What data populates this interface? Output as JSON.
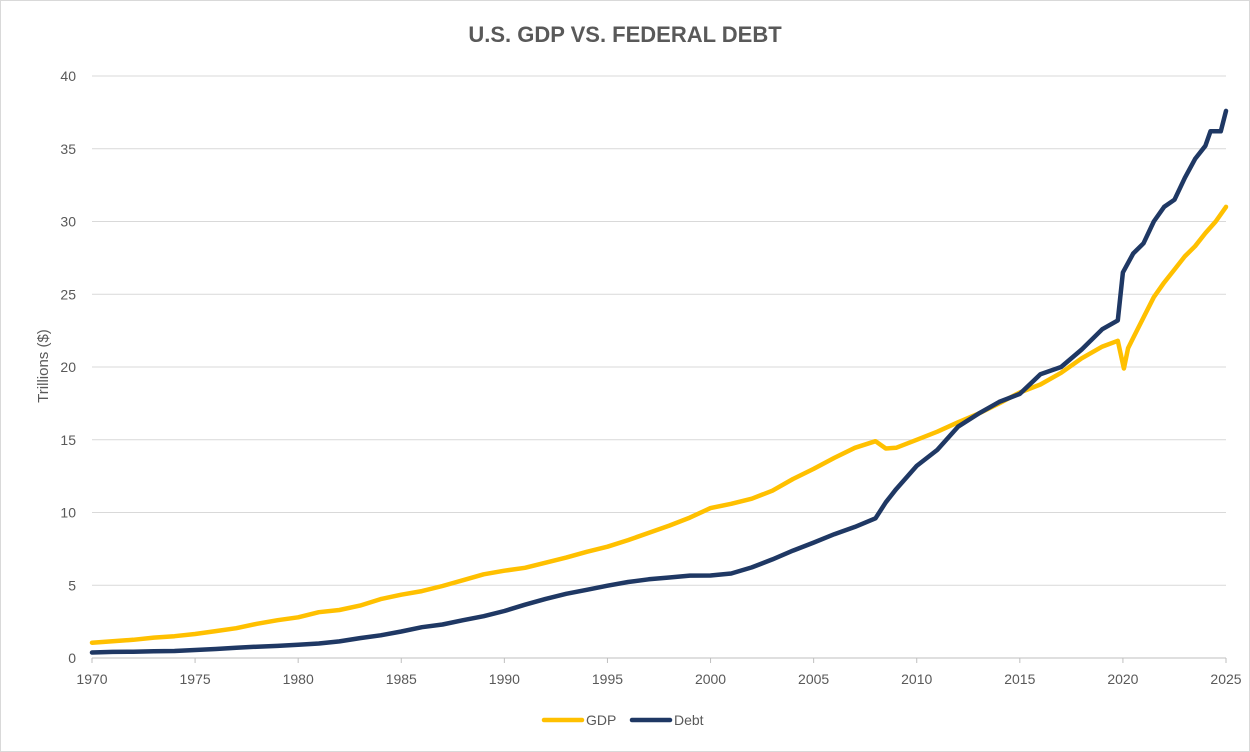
{
  "chart_data": {
    "type": "line",
    "title": "U.S. GDP VS. FEDERAL DEBT",
    "xlabel": "",
    "ylabel": "Trillions ($)",
    "xlim": [
      1970,
      2025
    ],
    "ylim": [
      0,
      40
    ],
    "x_ticks": [
      "1970",
      "1975",
      "1980",
      "1985",
      "1990",
      "1995",
      "2000",
      "2005",
      "2010",
      "2015",
      "2020",
      "2025"
    ],
    "y_ticks": [
      "0",
      "5",
      "10",
      "15",
      "20",
      "25",
      "30",
      "35",
      "40"
    ],
    "grid": "horizontal",
    "legend_position": "bottom",
    "series": [
      {
        "name": "GDP",
        "color": "#FFC000",
        "points": [
          [
            1970,
            1.05
          ],
          [
            1971,
            1.15
          ],
          [
            1972,
            1.25
          ],
          [
            1973,
            1.4
          ],
          [
            1974,
            1.5
          ],
          [
            1975,
            1.65
          ],
          [
            1976,
            1.85
          ],
          [
            1977,
            2.05
          ],
          [
            1978,
            2.35
          ],
          [
            1979,
            2.6
          ],
          [
            1980,
            2.8
          ],
          [
            1981,
            3.15
          ],
          [
            1982,
            3.3
          ],
          [
            1983,
            3.6
          ],
          [
            1984,
            4.05
          ],
          [
            1985,
            4.35
          ],
          [
            1986,
            4.6
          ],
          [
            1987,
            4.95
          ],
          [
            1988,
            5.35
          ],
          [
            1989,
            5.75
          ],
          [
            1990,
            6.0
          ],
          [
            1991,
            6.2
          ],
          [
            1992,
            6.55
          ],
          [
            1993,
            6.9
          ],
          [
            1994,
            7.3
          ],
          [
            1995,
            7.65
          ],
          [
            1996,
            8.1
          ],
          [
            1997,
            8.6
          ],
          [
            1998,
            9.1
          ],
          [
            1999,
            9.65
          ],
          [
            2000,
            10.3
          ],
          [
            2001,
            10.6
          ],
          [
            2002,
            10.95
          ],
          [
            2003,
            11.5
          ],
          [
            2004,
            12.3
          ],
          [
            2005,
            13.0
          ],
          [
            2006,
            13.75
          ],
          [
            2007,
            14.45
          ],
          [
            2008,
            14.9
          ],
          [
            2008.5,
            14.4
          ],
          [
            2009,
            14.45
          ],
          [
            2010,
            15.0
          ],
          [
            2011,
            15.55
          ],
          [
            2012,
            16.2
          ],
          [
            2013,
            16.8
          ],
          [
            2014,
            17.5
          ],
          [
            2015,
            18.25
          ],
          [
            2016,
            18.8
          ],
          [
            2017,
            19.6
          ],
          [
            2018,
            20.6
          ],
          [
            2019,
            21.4
          ],
          [
            2019.75,
            21.8
          ],
          [
            2020.05,
            19.9
          ],
          [
            2020.25,
            21.3
          ],
          [
            2020.5,
            22.0
          ],
          [
            2021,
            23.4
          ],
          [
            2021.5,
            24.8
          ],
          [
            2022,
            25.8
          ],
          [
            2022.5,
            26.7
          ],
          [
            2023,
            27.6
          ],
          [
            2023.5,
            28.3
          ],
          [
            2024,
            29.2
          ],
          [
            2024.5,
            30.0
          ],
          [
            2025,
            31.0
          ]
        ]
      },
      {
        "name": "Debt",
        "color": "#1F3864",
        "points": [
          [
            1970,
            0.38
          ],
          [
            1971,
            0.42
          ],
          [
            1972,
            0.43
          ],
          [
            1973,
            0.46
          ],
          [
            1974,
            0.48
          ],
          [
            1975,
            0.55
          ],
          [
            1976,
            0.62
          ],
          [
            1977,
            0.7
          ],
          [
            1978,
            0.78
          ],
          [
            1979,
            0.83
          ],
          [
            1980,
            0.91
          ],
          [
            1981,
            1.0
          ],
          [
            1982,
            1.14
          ],
          [
            1983,
            1.37
          ],
          [
            1984,
            1.56
          ],
          [
            1985,
            1.82
          ],
          [
            1986,
            2.12
          ],
          [
            1987,
            2.3
          ],
          [
            1988,
            2.6
          ],
          [
            1989,
            2.87
          ],
          [
            1990,
            3.23
          ],
          [
            1991,
            3.66
          ],
          [
            1992,
            4.06
          ],
          [
            1993,
            4.41
          ],
          [
            1994,
            4.69
          ],
          [
            1995,
            4.97
          ],
          [
            1996,
            5.22
          ],
          [
            1997,
            5.41
          ],
          [
            1998,
            5.53
          ],
          [
            1999,
            5.66
          ],
          [
            2000,
            5.67
          ],
          [
            2001,
            5.81
          ],
          [
            2002,
            6.23
          ],
          [
            2003,
            6.78
          ],
          [
            2004,
            7.38
          ],
          [
            2005,
            7.93
          ],
          [
            2006,
            8.51
          ],
          [
            2007,
            9.01
          ],
          [
            2008,
            9.6
          ],
          [
            2008.5,
            10.7
          ],
          [
            2009,
            11.6
          ],
          [
            2010,
            13.2
          ],
          [
            2011,
            14.3
          ],
          [
            2012,
            15.9
          ],
          [
            2013,
            16.8
          ],
          [
            2014,
            17.6
          ],
          [
            2015,
            18.15
          ],
          [
            2016,
            19.5
          ],
          [
            2017,
            20.0
          ],
          [
            2018,
            21.2
          ],
          [
            2019,
            22.6
          ],
          [
            2019.75,
            23.2
          ],
          [
            2020,
            26.5
          ],
          [
            2020.5,
            27.8
          ],
          [
            2021,
            28.5
          ],
          [
            2021.5,
            30.0
          ],
          [
            2022,
            31.0
          ],
          [
            2022.5,
            31.5
          ],
          [
            2023,
            33.0
          ],
          [
            2023.5,
            34.3
          ],
          [
            2024,
            35.2
          ],
          [
            2024.25,
            36.2
          ],
          [
            2024.75,
            36.2
          ],
          [
            2025,
            37.6
          ]
        ]
      }
    ]
  }
}
